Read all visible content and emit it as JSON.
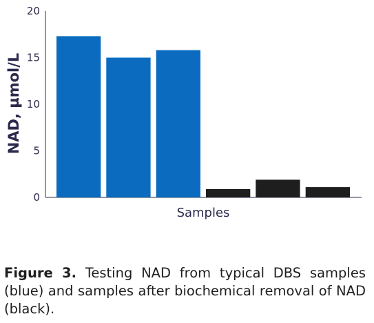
{
  "chart_data": {
    "type": "bar",
    "categories": [
      "",
      "",
      "",
      "",
      "",
      ""
    ],
    "values": [
      17.3,
      15.0,
      15.8,
      0.9,
      1.9,
      1.1
    ],
    "bar_groups": [
      "blue",
      "blue",
      "blue",
      "black",
      "black",
      "black"
    ],
    "colors": {
      "blue": "#0b6cbf",
      "black": "#1e1e1e",
      "axis": "#2b2a4c"
    },
    "ylabel": "NAD, µmol/L",
    "xlabel": "Samples",
    "ylim": [
      0,
      20
    ],
    "yticks": [
      0,
      5,
      10,
      15,
      20
    ],
    "grid": false
  },
  "caption": {
    "label": "Figure 3.",
    "text": " Testing NAD from typical DBS samples (blue) and samples after biochemical removal of NAD (black)."
  }
}
